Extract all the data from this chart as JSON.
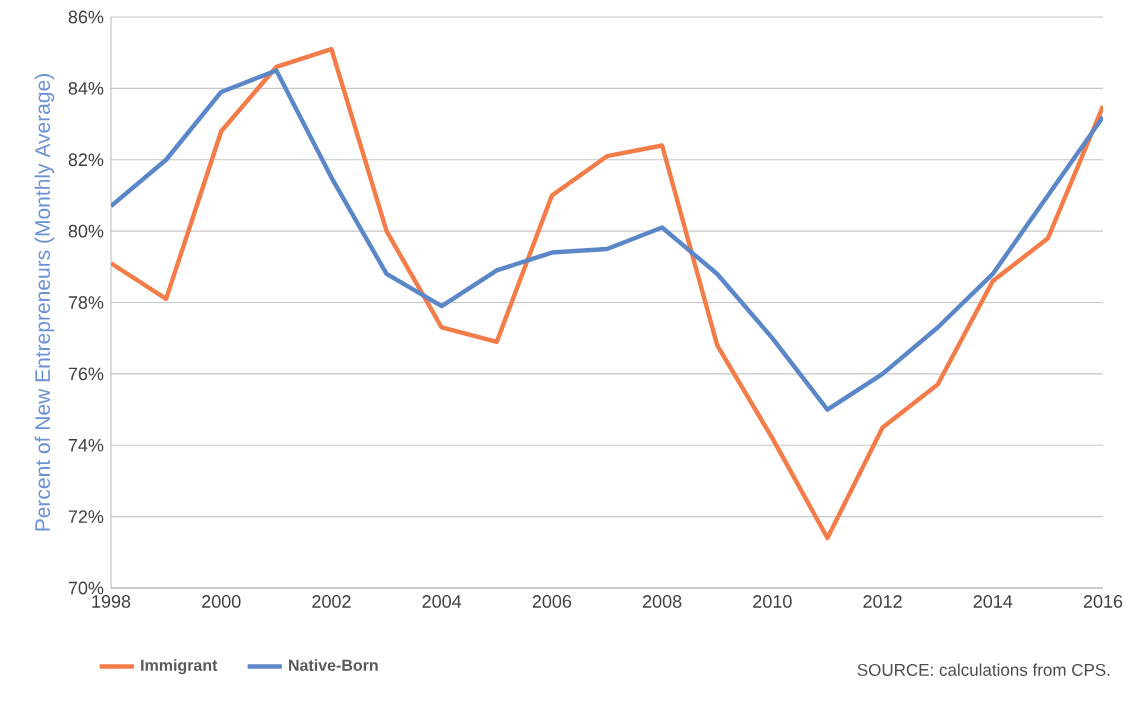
{
  "chart_data": {
    "type": "line",
    "ylabel": "Percent of New Entrepreneurs (Monthly Average)",
    "x": [
      1998,
      1999,
      2000,
      2001,
      2002,
      2003,
      2004,
      2005,
      2006,
      2007,
      2008,
      2009,
      2010,
      2011,
      2012,
      2013,
      2014,
      2015,
      2016
    ],
    "series": [
      {
        "name": "Immigrant",
        "color": "#f47c48",
        "values": [
          79.1,
          78.1,
          82.8,
          84.6,
          85.1,
          80.0,
          77.3,
          76.9,
          81.0,
          82.1,
          82.4,
          76.8,
          74.2,
          71.4,
          74.5,
          75.7,
          78.6,
          79.8,
          83.5
        ]
      },
      {
        "name": "Native-Born",
        "color": "#5b87c9",
        "values": [
          80.7,
          82.0,
          83.9,
          84.5,
          81.5,
          78.8,
          77.9,
          78.9,
          79.4,
          79.5,
          80.1,
          78.8,
          77.0,
          75.0,
          76.0,
          77.3,
          78.8,
          81.0,
          83.2
        ]
      }
    ],
    "xlim": [
      1998,
      2016
    ],
    "xticks": [
      1998,
      2000,
      2002,
      2004,
      2006,
      2008,
      2010,
      2012,
      2014,
      2016
    ],
    "ylim": [
      70,
      86
    ],
    "yticks": [
      {
        "value": 70,
        "label": "70%"
      },
      {
        "value": 72,
        "label": "72%"
      },
      {
        "value": 74,
        "label": "74%"
      },
      {
        "value": 76,
        "label": "76%"
      },
      {
        "value": 78,
        "label": "78%"
      },
      {
        "value": 80,
        "label": "80%"
      },
      {
        "value": 82,
        "label": "82%"
      },
      {
        "value": 84,
        "label": "84%"
      },
      {
        "value": 86,
        "label": "86%"
      }
    ],
    "grid": "y",
    "legend": "bottom left",
    "marker": "none",
    "line_style": "solid",
    "annotations": [
      "SOURCE: calculations from CPS."
    ]
  }
}
